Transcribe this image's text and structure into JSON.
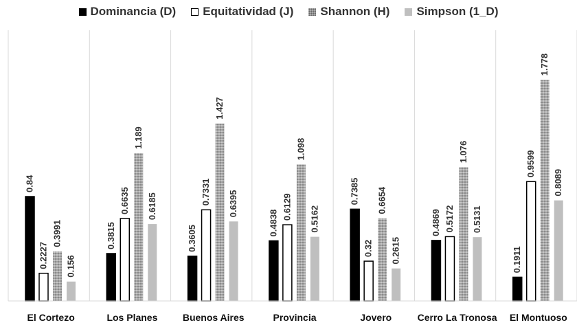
{
  "chart_data": {
    "type": "bar",
    "categories": [
      "El Cortezo",
      "Los Planes",
      "Buenos Aires",
      "Provincia",
      "Jovero",
      "Cerro La Tronosa",
      "El Montuoso"
    ],
    "series": [
      {
        "name": "Dominancia (D)",
        "values": [
          0.84,
          0.3815,
          0.3605,
          0.4838,
          0.7385,
          0.4869,
          0.1911
        ],
        "labels": [
          "0.84",
          "0.3815",
          "0.3605",
          "0.4838",
          "0.7385",
          "0.4869",
          "0.1911"
        ]
      },
      {
        "name": "Equitatividad (J)",
        "values": [
          0.2227,
          0.6635,
          0.7331,
          0.6129,
          0.32,
          0.5172,
          0.9599
        ],
        "labels": [
          "0.2227",
          "0.6635",
          "0.7331",
          "0.6129",
          "0.32",
          "0.5172",
          "0.9599"
        ]
      },
      {
        "name": "Shannon (H)",
        "values": [
          0.3991,
          1.189,
          1.427,
          1.098,
          0.6654,
          1.076,
          1.778
        ],
        "labels": [
          "0.3991",
          "1.189",
          "1.427",
          "1.098",
          "0.6654",
          "1.076",
          "1.778"
        ]
      },
      {
        "name": "Simpson (1_D)",
        "values": [
          0.156,
          0.6185,
          0.6395,
          0.5162,
          0.2615,
          0.5131,
          0.8089
        ],
        "labels": [
          "0.156",
          "0.6185",
          "0.6395",
          "0.5162",
          "0.2615",
          "0.5131",
          "0.8089"
        ]
      }
    ],
    "ylim": [
      0,
      1.9
    ],
    "grid": false,
    "legend_position": "top",
    "colors": [
      "#000000",
      "#ffffff",
      "#a6a6a6",
      "#bfbfbf"
    ]
  }
}
